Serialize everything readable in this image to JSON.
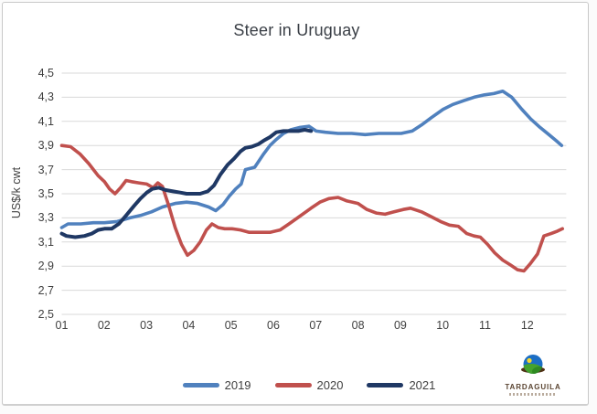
{
  "frame": {
    "background": "#ffffff",
    "border_color": "#c8c8c8"
  },
  "chart_data": {
    "type": "line",
    "title": "Steer in Uruguay",
    "ylabel": "US$/k cwt",
    "xlabel": "",
    "grid": {
      "horizontal": true,
      "vertical": false,
      "color": "#d9d9d9"
    },
    "legend_position": "bottom",
    "y_axis": {
      "min": 2.5,
      "max": 4.5,
      "step": 0.2,
      "tick_labels": [
        "2,5",
        "2,7",
        "2,9",
        "3,1",
        "3,3",
        "3,5",
        "3,7",
        "3,9",
        "4,1",
        "4,3",
        "4,5"
      ],
      "tick_values": [
        2.5,
        2.7,
        2.9,
        3.1,
        3.3,
        3.5,
        3.7,
        3.9,
        4.1,
        4.3,
        4.5
      ]
    },
    "x_axis": {
      "min": 1,
      "max": 12.92,
      "tick_labels": [
        "01",
        "02",
        "03",
        "04",
        "05",
        "06",
        "07",
        "08",
        "09",
        "10",
        "11",
        "12"
      ],
      "tick_values": [
        1,
        2,
        3,
        4,
        5,
        6,
        7,
        8,
        9,
        10,
        11,
        12
      ]
    },
    "series": [
      {
        "name": "2019",
        "color": "#5081BE",
        "line_width": 3.6,
        "points": [
          [
            1.0,
            3.22
          ],
          [
            1.15,
            3.25
          ],
          [
            1.45,
            3.25
          ],
          [
            1.75,
            3.26
          ],
          [
            2.01,
            3.26
          ],
          [
            2.31,
            3.27
          ],
          [
            2.61,
            3.3
          ],
          [
            2.86,
            3.32
          ],
          [
            3.12,
            3.35
          ],
          [
            3.38,
            3.39
          ],
          [
            3.68,
            3.42
          ],
          [
            3.95,
            3.43
          ],
          [
            4.21,
            3.42
          ],
          [
            4.47,
            3.39
          ],
          [
            4.64,
            3.36
          ],
          [
            4.81,
            3.41
          ],
          [
            4.96,
            3.48
          ],
          [
            5.11,
            3.54
          ],
          [
            5.24,
            3.58
          ],
          [
            5.34,
            3.7
          ],
          [
            5.56,
            3.72
          ],
          [
            5.77,
            3.83
          ],
          [
            5.92,
            3.9
          ],
          [
            6.07,
            3.95
          ],
          [
            6.24,
            4.0
          ],
          [
            6.41,
            4.03
          ],
          [
            6.63,
            4.05
          ],
          [
            6.84,
            4.06
          ],
          [
            7.01,
            4.02
          ],
          [
            7.23,
            4.01
          ],
          [
            7.53,
            4.0
          ],
          [
            7.85,
            4.0
          ],
          [
            8.17,
            3.99
          ],
          [
            8.49,
            4.0
          ],
          [
            8.81,
            4.0
          ],
          [
            9.02,
            4.0
          ],
          [
            9.28,
            4.02
          ],
          [
            9.5,
            4.07
          ],
          [
            9.73,
            4.13
          ],
          [
            10.01,
            4.2
          ],
          [
            10.24,
            4.24
          ],
          [
            10.48,
            4.27
          ],
          [
            10.74,
            4.3
          ],
          [
            10.99,
            4.32
          ],
          [
            11.21,
            4.33
          ],
          [
            11.42,
            4.35
          ],
          [
            11.63,
            4.3
          ],
          [
            11.87,
            4.2
          ],
          [
            12.08,
            4.12
          ],
          [
            12.3,
            4.05
          ],
          [
            12.51,
            3.99
          ],
          [
            12.68,
            3.94
          ],
          [
            12.81,
            3.9
          ]
        ]
      },
      {
        "name": "2020",
        "color": "#C0504D",
        "line_width": 3.6,
        "points": [
          [
            1.0,
            3.9
          ],
          [
            1.21,
            3.89
          ],
          [
            1.43,
            3.83
          ],
          [
            1.64,
            3.75
          ],
          [
            1.86,
            3.65
          ],
          [
            2.01,
            3.6
          ],
          [
            2.13,
            3.54
          ],
          [
            2.26,
            3.5
          ],
          [
            2.39,
            3.55
          ],
          [
            2.52,
            3.61
          ],
          [
            2.65,
            3.6
          ],
          [
            2.82,
            3.59
          ],
          [
            3.01,
            3.58
          ],
          [
            3.16,
            3.55
          ],
          [
            3.27,
            3.59
          ],
          [
            3.38,
            3.56
          ],
          [
            3.53,
            3.4
          ],
          [
            3.68,
            3.22
          ],
          [
            3.83,
            3.08
          ],
          [
            3.97,
            2.99
          ],
          [
            4.12,
            3.03
          ],
          [
            4.27,
            3.1
          ],
          [
            4.42,
            3.2
          ],
          [
            4.55,
            3.25
          ],
          [
            4.7,
            3.22
          ],
          [
            4.85,
            3.21
          ],
          [
            5.02,
            3.21
          ],
          [
            5.22,
            3.2
          ],
          [
            5.43,
            3.18
          ],
          [
            5.67,
            3.18
          ],
          [
            5.92,
            3.18
          ],
          [
            6.16,
            3.2
          ],
          [
            6.37,
            3.25
          ],
          [
            6.61,
            3.31
          ],
          [
            6.89,
            3.38
          ],
          [
            7.1,
            3.43
          ],
          [
            7.31,
            3.46
          ],
          [
            7.53,
            3.47
          ],
          [
            7.74,
            3.44
          ],
          [
            8.0,
            3.42
          ],
          [
            8.21,
            3.37
          ],
          [
            8.43,
            3.34
          ],
          [
            8.64,
            3.33
          ],
          [
            8.85,
            3.35
          ],
          [
            9.07,
            3.37
          ],
          [
            9.24,
            3.38
          ],
          [
            9.5,
            3.35
          ],
          [
            9.73,
            3.31
          ],
          [
            9.95,
            3.27
          ],
          [
            10.16,
            3.24
          ],
          [
            10.37,
            3.23
          ],
          [
            10.57,
            3.17
          ],
          [
            10.74,
            3.15
          ],
          [
            10.89,
            3.14
          ],
          [
            11.06,
            3.08
          ],
          [
            11.23,
            3.01
          ],
          [
            11.42,
            2.95
          ],
          [
            11.6,
            2.91
          ],
          [
            11.77,
            2.87
          ],
          [
            11.92,
            2.86
          ],
          [
            12.07,
            2.92
          ],
          [
            12.24,
            3.0
          ],
          [
            12.39,
            3.15
          ],
          [
            12.56,
            3.17
          ],
          [
            12.71,
            3.19
          ],
          [
            12.83,
            3.21
          ]
        ]
      },
      {
        "name": "2021",
        "color": "#1F3864",
        "line_width": 4,
        "points": [
          [
            1.0,
            3.17
          ],
          [
            1.11,
            3.15
          ],
          [
            1.32,
            3.14
          ],
          [
            1.54,
            3.15
          ],
          [
            1.71,
            3.17
          ],
          [
            1.86,
            3.2
          ],
          [
            2.01,
            3.21
          ],
          [
            2.18,
            3.21
          ],
          [
            2.35,
            3.25
          ],
          [
            2.52,
            3.32
          ],
          [
            2.71,
            3.4
          ],
          [
            2.86,
            3.46
          ],
          [
            3.01,
            3.51
          ],
          [
            3.14,
            3.54
          ],
          [
            3.29,
            3.55
          ],
          [
            3.46,
            3.53
          ],
          [
            3.63,
            3.52
          ],
          [
            3.8,
            3.51
          ],
          [
            3.95,
            3.5
          ],
          [
            4.12,
            3.5
          ],
          [
            4.27,
            3.5
          ],
          [
            4.45,
            3.52
          ],
          [
            4.6,
            3.57
          ],
          [
            4.75,
            3.66
          ],
          [
            4.92,
            3.74
          ],
          [
            5.07,
            3.79
          ],
          [
            5.22,
            3.85
          ],
          [
            5.34,
            3.88
          ],
          [
            5.49,
            3.89
          ],
          [
            5.64,
            3.91
          ],
          [
            5.77,
            3.94
          ],
          [
            5.92,
            3.97
          ],
          [
            6.07,
            4.01
          ],
          [
            6.24,
            4.02
          ],
          [
            6.41,
            4.02
          ],
          [
            6.59,
            4.02
          ],
          [
            6.74,
            4.03
          ],
          [
            6.89,
            4.02
          ]
        ]
      }
    ]
  },
  "branding": {
    "logo_text": "TARDAGUILA",
    "logo_text_color": "#5a4431",
    "globe_colors": {
      "sky": "#1c6ec4",
      "hill": "#45a32d",
      "sun": "#f7d72d",
      "base": "#4f3115"
    }
  }
}
